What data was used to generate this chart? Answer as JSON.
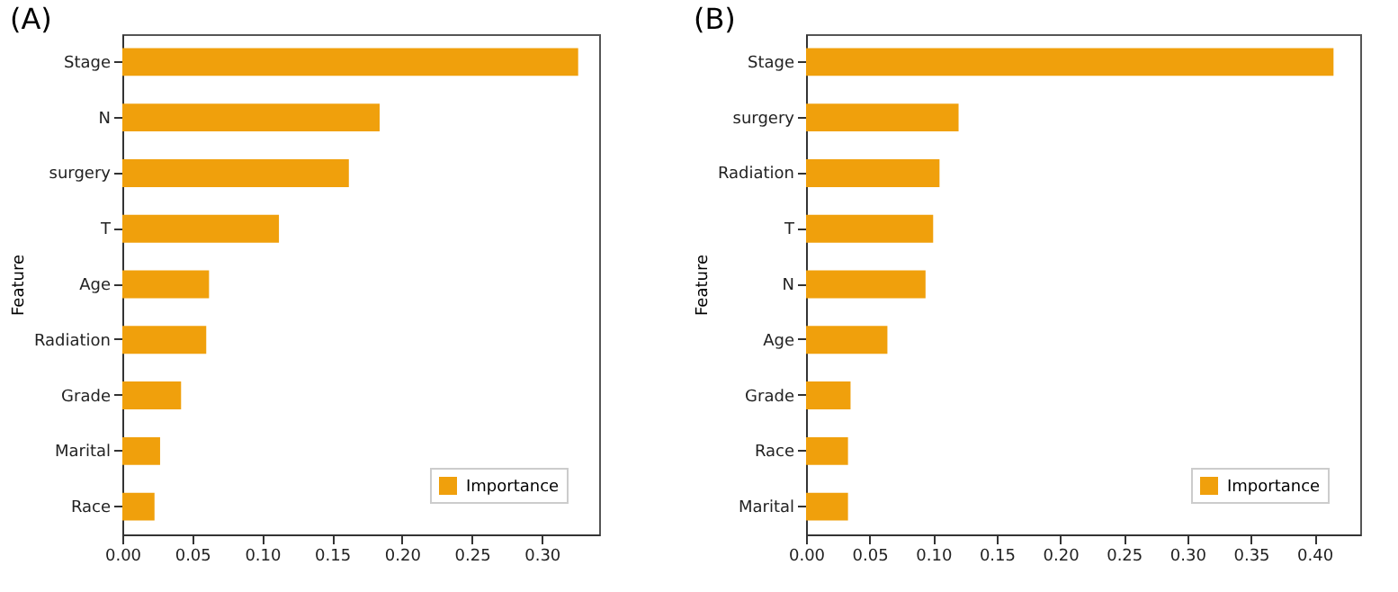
{
  "chart_data": [
    {
      "type": "bar",
      "orientation": "horizontal",
      "title": "(A)",
      "ylabel": "Feature",
      "categories": [
        "Stage",
        "N",
        "surgery",
        "T",
        "Age",
        "Radiation",
        "Grade",
        "Marital",
        "Race"
      ],
      "series": [
        {
          "name": "Importance",
          "color": "#f0a00c",
          "values": [
            0.326,
            0.184,
            0.162,
            0.112,
            0.062,
            0.06,
            0.042,
            0.027,
            0.023
          ]
        }
      ],
      "xlim": [
        0,
        0.341
      ],
      "xticks": [
        {
          "value": 0,
          "label": "0.00"
        },
        {
          "value": 0.05,
          "label": "0.05"
        },
        {
          "value": 0.1,
          "label": "0.10"
        },
        {
          "value": 0.15,
          "label": "0.15"
        },
        {
          "value": 0.2,
          "label": "0.20"
        },
        {
          "value": 0.25,
          "label": "0.25"
        },
        {
          "value": 0.3,
          "label": "0.30"
        }
      ],
      "grid": false,
      "legend": "bottom right"
    },
    {
      "type": "bar",
      "orientation": "horizontal",
      "title": "(B)",
      "ylabel": "Feature",
      "categories": [
        "Stage",
        "surgery",
        "Radiation",
        "T",
        "N",
        "Age",
        "Grade",
        "Race",
        "Marital"
      ],
      "series": [
        {
          "name": "Importance",
          "color": "#f0a00c",
          "values": [
            0.415,
            0.12,
            0.105,
            0.1,
            0.094,
            0.064,
            0.035,
            0.033,
            0.033
          ]
        }
      ],
      "xlim": [
        0,
        0.436
      ],
      "xticks": [
        {
          "value": 0,
          "label": "0.00"
        },
        {
          "value": 0.05,
          "label": "0.05"
        },
        {
          "value": 0.1,
          "label": "0.10"
        },
        {
          "value": 0.15,
          "label": "0.15"
        },
        {
          "value": 0.2,
          "label": "0.20"
        },
        {
          "value": 0.25,
          "label": "0.25"
        },
        {
          "value": 0.3,
          "label": "0.30"
        },
        {
          "value": 0.35,
          "label": "0.35"
        },
        {
          "value": 0.4,
          "label": "0.40"
        }
      ],
      "grid": false,
      "legend": "bottom right"
    }
  ]
}
